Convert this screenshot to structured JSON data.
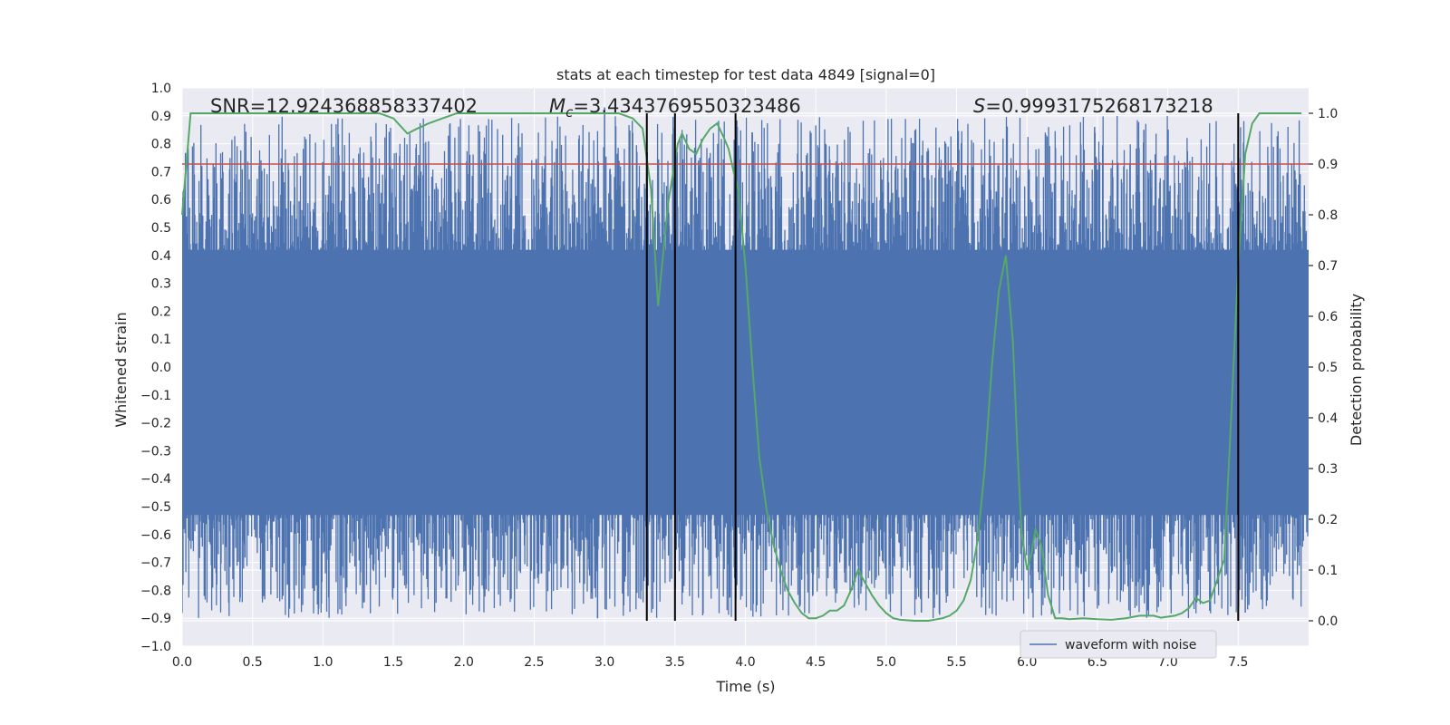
{
  "chart_data": {
    "type": "line",
    "title": "stats at each timestep for test data 4849 [signal=0]",
    "xlabel": "Time (s)",
    "ylabel": "Whitened strain",
    "ylabel_right": "Detection probability",
    "xlim": [
      0.0,
      8.0
    ],
    "ylim": [
      -1.0,
      1.0
    ],
    "ylim_right": [
      -0.05,
      1.05
    ],
    "x_ticks": [
      "0.0",
      "0.5",
      "1.0",
      "1.5",
      "2.0",
      "2.5",
      "3.0",
      "3.5",
      "4.0",
      "4.5",
      "5.0",
      "5.5",
      "6.0",
      "6.5",
      "7.0",
      "7.5"
    ],
    "x_tick_values": [
      0.0,
      0.5,
      1.0,
      1.5,
      2.0,
      2.5,
      3.0,
      3.5,
      4.0,
      4.5,
      5.0,
      5.5,
      6.0,
      6.5,
      7.0,
      7.5
    ],
    "y_ticks": [
      "1.0",
      "0.9",
      "0.8",
      "0.7",
      "0.6",
      "0.5",
      "0.4",
      "0.3",
      "0.2",
      "0.1",
      "0.0",
      "−0.1",
      "−0.2",
      "−0.3",
      "−0.4",
      "−0.5",
      "−0.6",
      "−0.7",
      "−0.8",
      "−0.9",
      "−1.0"
    ],
    "y_tick_values": [
      1.0,
      0.9,
      0.8,
      0.7,
      0.6,
      0.5,
      0.4,
      0.3,
      0.2,
      0.1,
      0.0,
      -0.1,
      -0.2,
      -0.3,
      -0.4,
      -0.5,
      -0.6,
      -0.7,
      -0.8,
      -0.9,
      -1.0
    ],
    "y_ticks_right": [
      "1.0",
      "0.9",
      "0.8",
      "0.7",
      "0.6",
      "0.5",
      "0.4",
      "0.3",
      "0.2",
      "0.1",
      "0.0"
    ],
    "y_tick_values_right": [
      1.0,
      0.9,
      0.8,
      0.7,
      0.6,
      0.5,
      0.4,
      0.3,
      0.2,
      0.1,
      0.0
    ],
    "annotations": {
      "snr": "SNR=12.924368858337402",
      "mc_symbol": "M",
      "mc_subscript": "c",
      "mc_value": "=3.4343769550323486",
      "s_symbol": "S",
      "s_value": "=0.9993175268173218"
    },
    "legend": {
      "label": "waveform with noise",
      "location": "lower-right"
    },
    "threshold": {
      "value": 0.9,
      "axis": "right",
      "color": "#c44e52"
    },
    "vlines": [
      3.3,
      3.5,
      3.93,
      7.5
    ],
    "noise_series": {
      "name": "waveform with noise",
      "color": "#4c72b0",
      "core_band": [
        -0.53,
        0.42
      ],
      "extreme_spikes": [
        0.93,
        -0.9
      ]
    },
    "series": [
      {
        "name": "detection probability",
        "axis": "right",
        "color": "#55a868",
        "x": [
          0.0,
          0.03,
          0.06,
          0.1,
          0.2,
          0.4,
          0.6,
          0.8,
          1.0,
          1.2,
          1.4,
          1.5,
          1.6,
          1.67,
          1.75,
          1.85,
          1.95,
          2.1,
          2.3,
          2.5,
          2.7,
          2.9,
          3.0,
          3.1,
          3.2,
          3.27,
          3.33,
          3.38,
          3.45,
          3.52,
          3.55,
          3.6,
          3.65,
          3.7,
          3.75,
          3.8,
          3.85,
          3.88,
          3.92,
          3.95,
          4.0,
          4.05,
          4.1,
          4.15,
          4.2,
          4.25,
          4.3,
          4.35,
          4.4,
          4.45,
          4.5,
          4.55,
          4.6,
          4.65,
          4.7,
          4.75,
          4.8,
          4.84,
          4.9,
          4.95,
          5.0,
          5.05,
          5.1,
          5.2,
          5.3,
          5.4,
          5.45,
          5.5,
          5.55,
          5.6,
          5.65,
          5.7,
          5.75,
          5.8,
          5.85,
          5.9,
          5.93,
          5.96,
          6.0,
          6.03,
          6.06,
          6.1,
          6.15,
          6.2,
          6.25,
          6.3,
          6.4,
          6.5,
          6.6,
          6.7,
          6.8,
          6.85,
          6.9,
          6.95,
          7.0,
          7.05,
          7.1,
          7.15,
          7.2,
          7.25,
          7.3,
          7.35,
          7.4,
          7.45,
          7.5,
          7.55,
          7.6,
          7.65,
          7.7,
          7.8,
          7.9,
          7.95
        ],
        "values": [
          0.8,
          0.9,
          1.0,
          1.0,
          1.0,
          1.0,
          1.0,
          1.0,
          1.0,
          1.0,
          1.0,
          0.99,
          0.96,
          0.97,
          0.98,
          0.99,
          1.0,
          1.0,
          1.0,
          1.0,
          1.0,
          1.0,
          1.0,
          1.0,
          0.99,
          0.97,
          0.85,
          0.62,
          0.82,
          0.94,
          0.96,
          0.93,
          0.92,
          0.95,
          0.97,
          0.98,
          0.95,
          0.93,
          0.88,
          0.85,
          0.7,
          0.5,
          0.32,
          0.22,
          0.15,
          0.1,
          0.06,
          0.035,
          0.015,
          0.005,
          0.005,
          0.01,
          0.02,
          0.02,
          0.03,
          0.06,
          0.1,
          0.08,
          0.05,
          0.03,
          0.015,
          0.005,
          0.002,
          0.0,
          0.0,
          0.005,
          0.01,
          0.02,
          0.04,
          0.08,
          0.16,
          0.3,
          0.5,
          0.65,
          0.72,
          0.55,
          0.35,
          0.18,
          0.1,
          0.13,
          0.18,
          0.15,
          0.05,
          0.005,
          0.005,
          0.003,
          0.005,
          0.003,
          0.002,
          0.005,
          0.01,
          0.01,
          0.01,
          0.006,
          0.008,
          0.01,
          0.015,
          0.025,
          0.045,
          0.035,
          0.04,
          0.08,
          0.12,
          0.4,
          0.7,
          0.92,
          0.98,
          1.0,
          1.0,
          1.0,
          1.0,
          1.0
        ]
      }
    ]
  }
}
